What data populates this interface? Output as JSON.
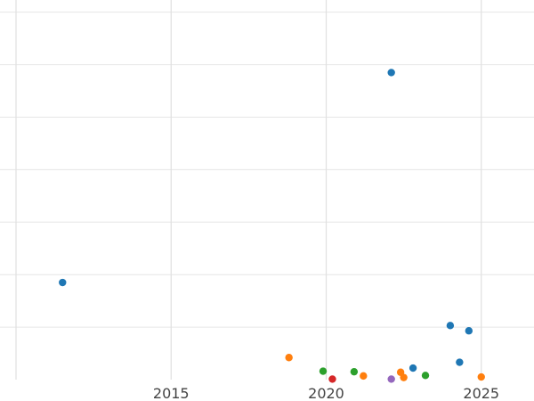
{
  "chart_data": {
    "type": "scatter",
    "title": "",
    "xlabel": "",
    "ylabel": "",
    "xlim": [
      2010.0,
      2026.7
    ],
    "ylim": [
      0,
      7.3
    ],
    "x_ticks": [
      2015,
      2020,
      2025
    ],
    "x_tick_labels": [
      "2015",
      "2020",
      "2025"
    ],
    "grid": true,
    "legend": "none",
    "series": [
      {
        "color": "#1f77b4",
        "points": [
          {
            "x": 2011.5,
            "y": 1.85
          },
          {
            "x": 2022.1,
            "y": 5.85
          },
          {
            "x": 2022.8,
            "y": 0.22
          },
          {
            "x": 2024.0,
            "y": 1.03
          },
          {
            "x": 2024.3,
            "y": 0.33
          },
          {
            "x": 2024.6,
            "y": 0.93
          }
        ]
      },
      {
        "color": "#ff7f0e",
        "points": [
          {
            "x": 2018.8,
            "y": 0.42
          },
          {
            "x": 2021.2,
            "y": 0.07
          },
          {
            "x": 2022.4,
            "y": 0.14
          },
          {
            "x": 2022.5,
            "y": 0.04
          },
          {
            "x": 2025.0,
            "y": 0.05
          }
        ]
      },
      {
        "color": "#2ca02c",
        "points": [
          {
            "x": 2019.9,
            "y": 0.16
          },
          {
            "x": 2020.9,
            "y": 0.15
          },
          {
            "x": 2023.2,
            "y": 0.08
          }
        ]
      },
      {
        "color": "#d62728",
        "points": [
          {
            "x": 2020.2,
            "y": 0.01
          }
        ]
      },
      {
        "color": "#9467bd",
        "points": [
          {
            "x": 2022.1,
            "y": 0.01
          }
        ]
      }
    ]
  }
}
